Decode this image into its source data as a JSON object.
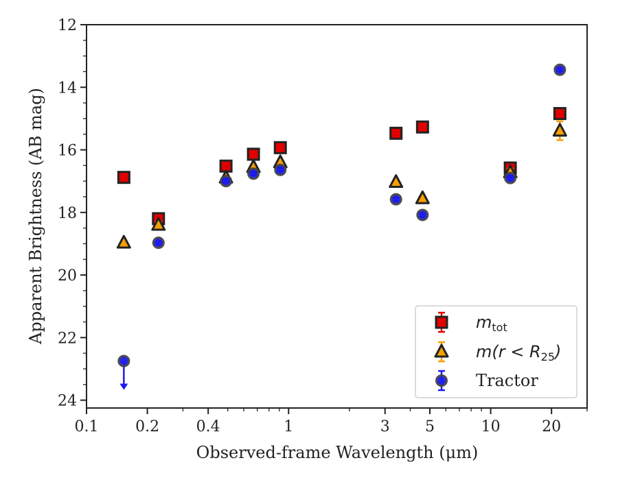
{
  "chart_data": {
    "type": "scatter",
    "xlabel": "Observed-frame Wavelength (μm)",
    "ylabel": "Apparent Brightness (AB mag)",
    "x_scale": "log",
    "xlim": [
      0.1,
      30
    ],
    "ylim": [
      24.25,
      12
    ],
    "y_inverted": true,
    "x_tick_labels": [
      "0.1",
      "0.2",
      "0.4",
      "1",
      "3",
      "5",
      "10",
      "20"
    ],
    "x_ticks": [
      0.1,
      0.2,
      0.4,
      1,
      3,
      5,
      10,
      20
    ],
    "y_ticks": [
      12,
      14,
      16,
      18,
      20,
      22,
      24
    ],
    "y_tick_labels": [
      "12",
      "14",
      "16",
      "18",
      "20",
      "22",
      "24"
    ],
    "legend_position": "lower-right",
    "series": [
      {
        "name": "m_tot",
        "legend_label": "m",
        "legend_sub": "tot",
        "marker": "square",
        "fill": "#e00000",
        "edge": "#222222",
        "errcolor": "#e00000",
        "x": [
          0.153,
          0.227,
          0.49,
          0.67,
          0.91,
          3.4,
          4.6,
          12.5,
          22.0
        ],
        "y": [
          16.88,
          18.2,
          16.52,
          16.14,
          15.93,
          15.47,
          15.27,
          16.58,
          14.84
        ],
        "yerr": [
          0.05,
          0.1,
          0.05,
          0.05,
          0.05,
          0.05,
          0.05,
          0.12,
          0.15
        ]
      },
      {
        "name": "m(r < R25)",
        "legend_label": "m(r < R",
        "legend_sub": "25",
        "legend_suffix": ")",
        "marker": "triangle",
        "fill": "#f5a000",
        "edge": "#222222",
        "errcolor": "#f5a000",
        "x": [
          0.153,
          0.227,
          0.49,
          0.67,
          0.91,
          3.4,
          4.6,
          12.5,
          22.0
        ],
        "y": [
          18.97,
          18.4,
          16.89,
          16.55,
          16.4,
          17.03,
          17.55,
          16.72,
          15.39
        ],
        "yerr": [
          0.05,
          0.1,
          0.05,
          0.05,
          0.05,
          0.05,
          0.05,
          0.12,
          0.3
        ]
      },
      {
        "name": "Tractor",
        "legend_label": "Tractor",
        "marker": "circle",
        "fill": "#1a1aee",
        "edge": "#444444",
        "errcolor": "#1a1aee",
        "x": [
          0.153,
          0.227,
          0.49,
          0.67,
          0.91,
          3.4,
          4.6,
          12.5,
          22.0
        ],
        "y": [
          22.75,
          18.97,
          17.0,
          16.76,
          16.64,
          17.58,
          18.08,
          16.9,
          13.44
        ],
        "yerr": [
          0,
          0.05,
          0.05,
          0.05,
          0.05,
          0.05,
          0.05,
          0.08,
          0.05
        ],
        "upper_limit": [
          true,
          false,
          false,
          false,
          false,
          false,
          false,
          false,
          false
        ]
      }
    ]
  }
}
